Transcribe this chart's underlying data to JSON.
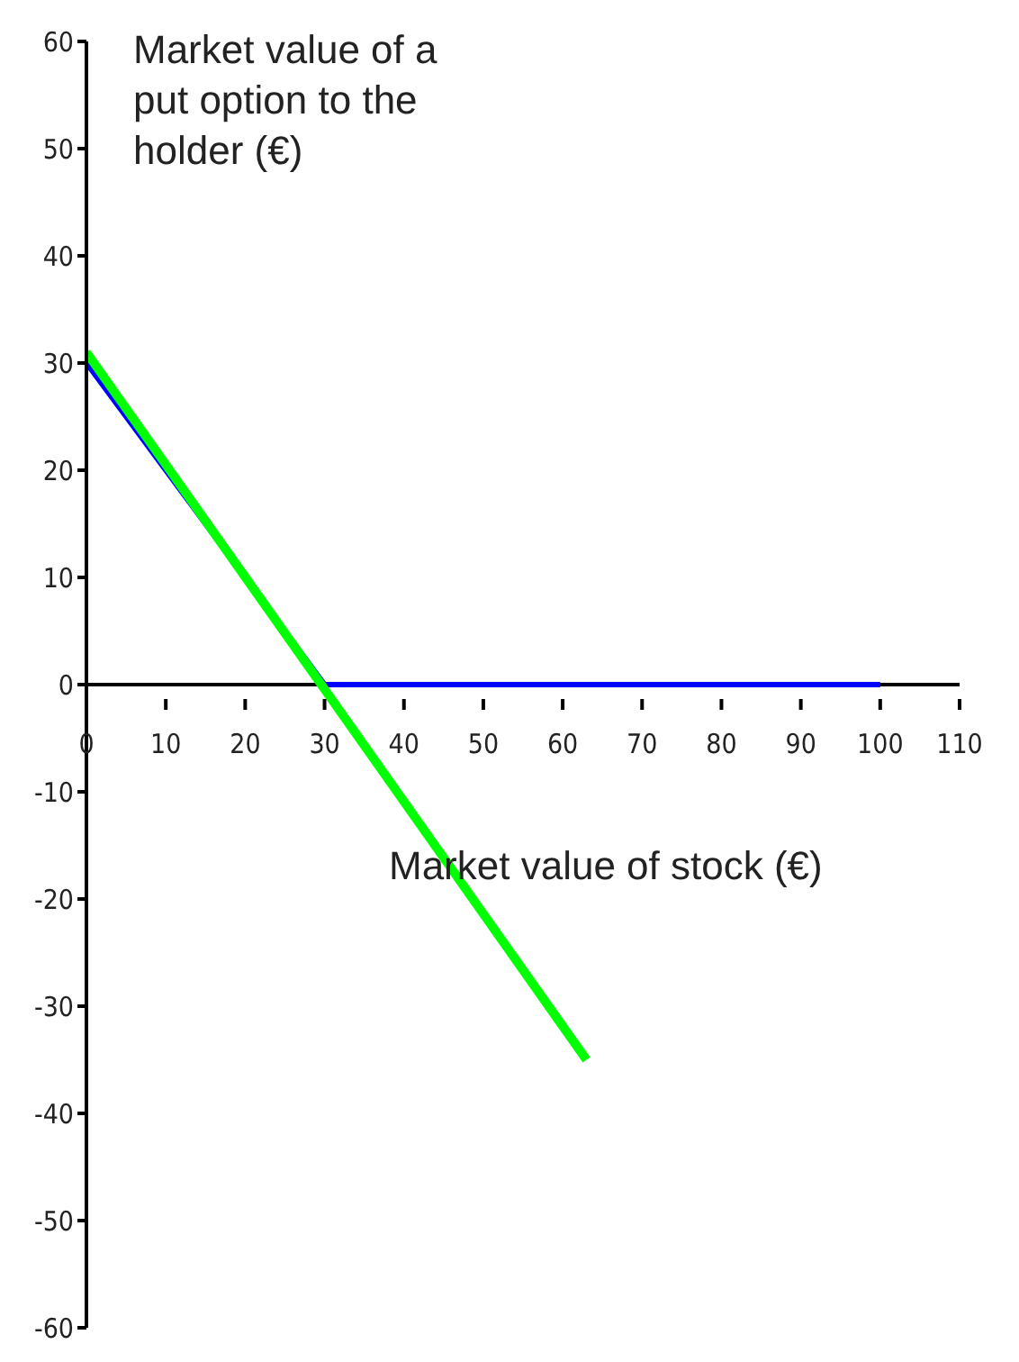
{
  "chart_data": {
    "type": "line",
    "xlabel": "Market value of stock (€)",
    "ylabel": "Market value of a put option to the holder (€)",
    "series": [
      {
        "color": "#0000ff",
        "x": [
          0,
          30,
          100
        ],
        "values": [
          30,
          0,
          0
        ]
      },
      {
        "color": "#00ff00",
        "x": [
          0,
          63
        ],
        "values": [
          31,
          -35
        ]
      }
    ],
    "xlim": [
      0,
      110
    ],
    "xticks": [
      0,
      10,
      20,
      30,
      40,
      50,
      60,
      70,
      80,
      90,
      100,
      110
    ],
    "ylim": [
      -60,
      60
    ],
    "yticks": [
      -60,
      -50,
      -40,
      -30,
      -20,
      -10,
      0,
      10,
      20,
      30,
      40,
      50,
      60
    ],
    "grid": false,
    "marker": "none",
    "line_style": "solid"
  }
}
